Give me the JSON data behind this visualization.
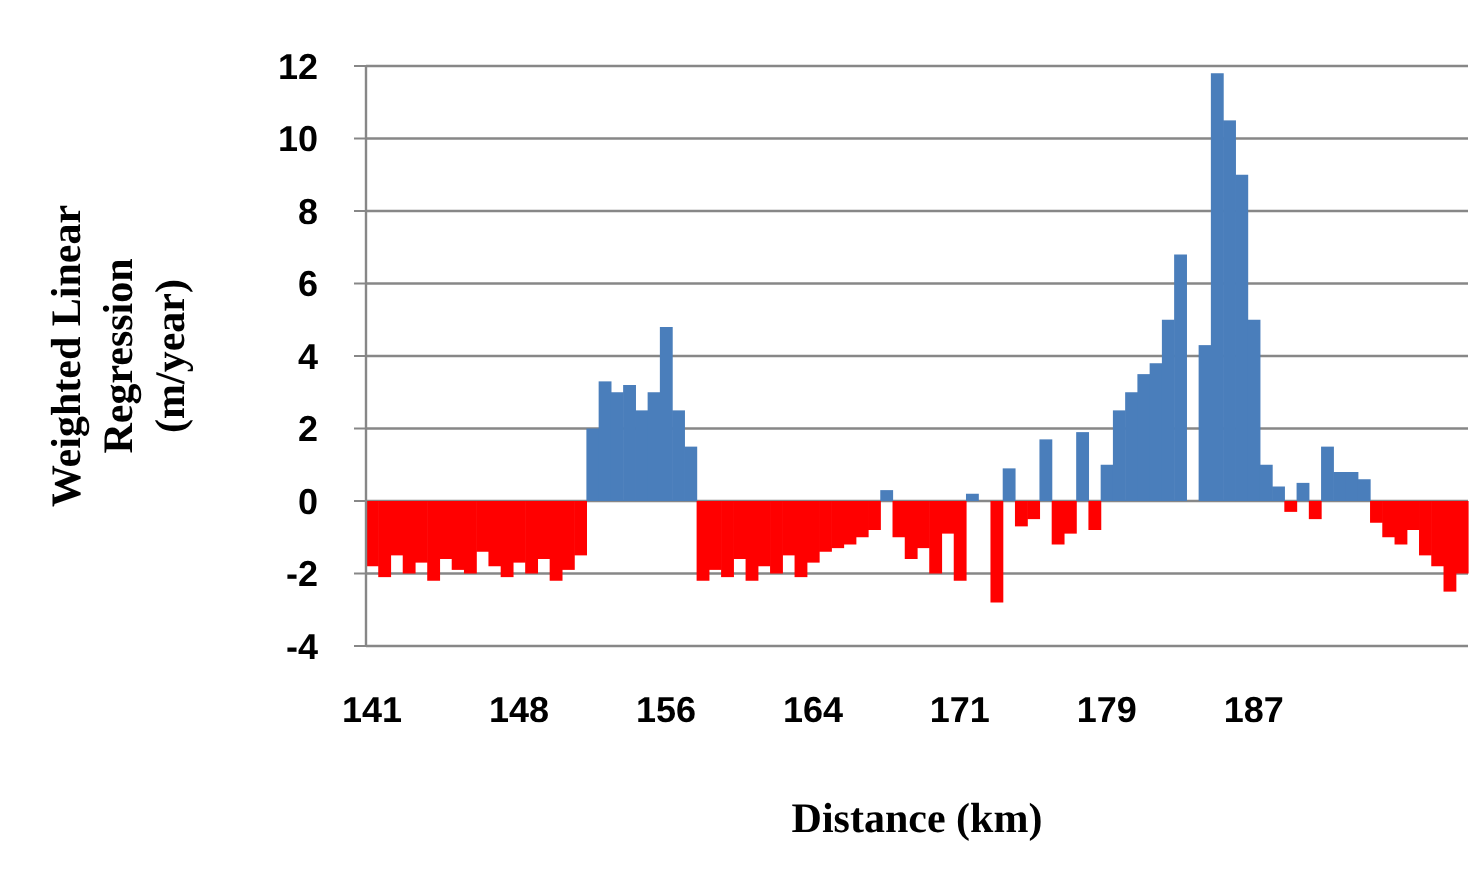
{
  "chart_data": {
    "type": "bar",
    "ylabel": "Weighted Linear Regression (m/year)",
    "xlabel": "Distance (km)",
    "categories": [
      "141",
      null,
      null,
      null,
      null,
      null,
      null,
      null,
      null,
      null,
      null,
      null,
      "148",
      null,
      null,
      null,
      null,
      null,
      null,
      null,
      null,
      null,
      null,
      null,
      "156",
      null,
      null,
      null,
      null,
      null,
      null,
      null,
      null,
      null,
      null,
      null,
      "164",
      null,
      null,
      null,
      null,
      null,
      null,
      null,
      null,
      null,
      null,
      null,
      "171",
      null,
      null,
      null,
      null,
      null,
      null,
      null,
      null,
      null,
      null,
      null,
      "179",
      null,
      null,
      null,
      null,
      null,
      null,
      null,
      null,
      null,
      null,
      null,
      "187",
      null,
      null,
      null,
      null,
      null,
      null,
      null,
      null,
      null,
      null,
      null,
      null,
      null,
      null,
      null,
      null,
      null
    ],
    "values": [
      -1.8,
      -2.1,
      -1.5,
      -2.0,
      -1.7,
      -2.2,
      -1.6,
      -1.9,
      -2.0,
      -1.4,
      -1.8,
      -2.1,
      -1.7,
      -2.0,
      -1.6,
      -2.2,
      -1.9,
      -1.5,
      2.0,
      3.3,
      3.0,
      3.2,
      2.5,
      3.0,
      4.8,
      2.5,
      1.5,
      -2.2,
      -1.9,
      -2.1,
      -1.6,
      -2.2,
      -1.8,
      -2.0,
      -1.5,
      -2.1,
      -1.7,
      -1.4,
      -1.3,
      -1.2,
      -1.0,
      -0.8,
      0.3,
      -1.0,
      -1.6,
      -1.3,
      -2.0,
      -0.9,
      -2.2,
      0.2,
      0,
      -2.8,
      0.9,
      -0.7,
      -0.5,
      1.7,
      -1.2,
      -0.9,
      1.9,
      -0.8,
      1.0,
      2.5,
      3.0,
      3.5,
      3.8,
      5.0,
      6.8,
      0,
      4.3,
      11.8,
      10.5,
      9.0,
      5.0,
      1.0,
      0.4,
      -0.3,
      0.5,
      -0.5,
      1.5,
      0.8,
      0.8,
      0.6,
      -0.6,
      -1.0,
      -1.2,
      -0.8,
      -1.5,
      -1.8,
      -2.5,
      -2.0
    ],
    "colors": [
      "#ff0000",
      "#ff0000",
      "#ff0000",
      "#ff0000",
      "#ff0000",
      "#ff0000",
      "#ff0000",
      "#ff0000",
      "#ff0000",
      "#ff0000",
      "#ff0000",
      "#ff0000",
      "#ff0000",
      "#ff0000",
      "#ff0000",
      "#ff0000",
      "#ff0000",
      "#ff0000",
      "#4a7ebb",
      "#4a7ebb",
      "#4a7ebb",
      "#4a7ebb",
      "#4a7ebb",
      "#4a7ebb",
      "#4a7ebb",
      "#4a7ebb",
      "#4a7ebb",
      "#ff0000",
      "#ff0000",
      "#ff0000",
      "#ff0000",
      "#ff0000",
      "#ff0000",
      "#ff0000",
      "#ff0000",
      "#ff0000",
      "#ff0000",
      "#ff0000",
      "#ff0000",
      "#ff0000",
      "#ff0000",
      "#ff0000",
      "#4a7ebb",
      "#ff0000",
      "#ff0000",
      "#ff0000",
      "#ff0000",
      "#ff0000",
      "#ff0000",
      "#4a7ebb",
      "#4a7ebb",
      "#ff0000",
      "#4a7ebb",
      "#ff0000",
      "#ff0000",
      "#4a7ebb",
      "#ff0000",
      "#ff0000",
      "#4a7ebb",
      "#ff0000",
      "#4a7ebb",
      "#4a7ebb",
      "#4a7ebb",
      "#4a7ebb",
      "#4a7ebb",
      "#4a7ebb",
      "#4a7ebb",
      "#4a7ebb",
      "#4a7ebb",
      "#4a7ebb",
      "#4a7ebb",
      "#4a7ebb",
      "#4a7ebb",
      "#4a7ebb",
      "#4a7ebb",
      "#ff0000",
      "#4a7ebb",
      "#ff0000",
      "#4a7ebb",
      "#4a7ebb",
      "#4a7ebb",
      "#4a7ebb",
      "#ff0000",
      "#ff0000",
      "#ff0000",
      "#ff0000",
      "#ff0000",
      "#ff0000",
      "#ff0000",
      "#ff0000"
    ],
    "ylim": [
      -4,
      12
    ],
    "yticks": [
      -4,
      -2,
      0,
      2,
      4,
      6,
      8,
      10,
      12
    ],
    "grid": "y"
  }
}
